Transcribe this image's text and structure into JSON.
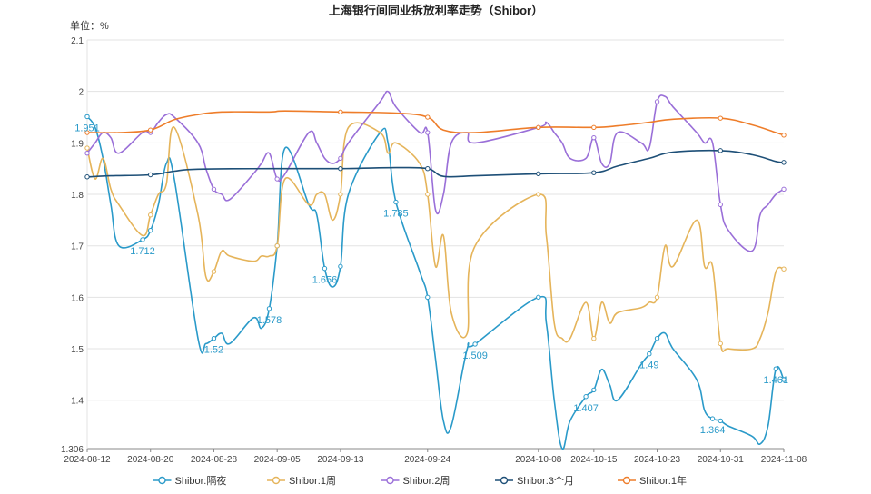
{
  "chart_data": {
    "type": "line",
    "title": "上海银行间同业拆放利率走势（Shibor）",
    "unit_label": "单位：%",
    "ylim": [
      1.306,
      2.1
    ],
    "y_ticks": [
      "1.306",
      "1.4",
      "1.5",
      "1.6",
      "1.7",
      "1.8",
      "1.9",
      "2",
      "2.1"
    ],
    "x_ticks": [
      "2024-08-12",
      "2024-08-20",
      "2024-08-28",
      "2024-09-05",
      "2024-09-13",
      "2024-09-24",
      "2024-10-08",
      "2024-10-15",
      "2024-10-23",
      "2024-10-31",
      "2024-11-08"
    ],
    "grid": true,
    "legend_position": "bottom",
    "series": [
      {
        "name": "Shibor:隔夜",
        "color": "#2a9ac9",
        "values": [
          [
            "2024-08-12",
            1.951
          ],
          [
            "2024-08-13",
            1.93
          ],
          [
            "2024-08-14",
            1.87
          ],
          [
            "2024-08-15",
            1.78
          ],
          [
            "2024-08-16",
            1.7
          ],
          [
            "2024-08-19",
            1.712
          ],
          [
            "2024-08-20",
            1.73
          ],
          [
            "2024-08-21",
            1.78
          ],
          [
            "2024-08-22",
            1.86
          ],
          [
            "2024-08-23",
            1.83
          ],
          [
            "2024-08-26",
            1.52
          ],
          [
            "2024-08-27",
            1.51
          ],
          [
            "2024-08-28",
            1.52
          ],
          [
            "2024-08-29",
            1.53
          ],
          [
            "2024-08-30",
            1.51
          ],
          [
            "2024-09-02",
            1.56
          ],
          [
            "2024-09-03",
            1.54
          ],
          [
            "2024-09-04",
            1.578
          ],
          [
            "2024-09-05",
            1.7
          ],
          [
            "2024-09-06",
            1.89
          ],
          [
            "2024-09-09",
            1.78
          ],
          [
            "2024-09-10",
            1.76
          ],
          [
            "2024-09-11",
            1.656
          ],
          [
            "2024-09-12",
            1.62
          ],
          [
            "2024-09-13",
            1.66
          ],
          [
            "2024-09-14",
            1.8
          ],
          [
            "2024-09-18",
            1.92
          ],
          [
            "2024-09-19",
            1.9
          ],
          [
            "2024-09-20",
            1.785
          ],
          [
            "2024-09-23",
            1.65
          ],
          [
            "2024-09-24",
            1.6
          ],
          [
            "2024-09-25",
            1.48
          ],
          [
            "2024-09-26",
            1.36
          ],
          [
            "2024-09-27",
            1.35
          ],
          [
            "2024-09-29",
            1.5
          ],
          [
            "2024-09-30",
            1.509
          ],
          [
            "2024-10-08",
            1.6
          ],
          [
            "2024-10-09",
            1.55
          ],
          [
            "2024-10-10",
            1.4
          ],
          [
            "2024-10-11",
            1.306
          ],
          [
            "2024-10-12",
            1.36
          ],
          [
            "2024-10-14",
            1.407
          ],
          [
            "2024-10-15",
            1.42
          ],
          [
            "2024-10-16",
            1.46
          ],
          [
            "2024-10-17",
            1.43
          ],
          [
            "2024-10-18",
            1.4
          ],
          [
            "2024-10-21",
            1.47
          ],
          [
            "2024-10-22",
            1.49
          ],
          [
            "2024-10-23",
            1.52
          ],
          [
            "2024-10-24",
            1.53
          ],
          [
            "2024-10-25",
            1.5
          ],
          [
            "2024-10-28",
            1.44
          ],
          [
            "2024-10-29",
            1.38
          ],
          [
            "2024-10-30",
            1.364
          ],
          [
            "2024-10-31",
            1.36
          ],
          [
            "2024-11-01",
            1.35
          ],
          [
            "2024-11-04",
            1.33
          ],
          [
            "2024-11-05",
            1.315
          ],
          [
            "2024-11-06",
            1.35
          ],
          [
            "2024-11-07",
            1.461
          ],
          [
            "2024-11-08",
            1.44
          ]
        ],
        "value_labels": [
          [
            "2024-08-12",
            "1.951"
          ],
          [
            "2024-08-19",
            "1.712"
          ],
          [
            "2024-08-28",
            "1.52"
          ],
          [
            "2024-09-04",
            "1.578"
          ],
          [
            "2024-09-11",
            "1.656"
          ],
          [
            "2024-09-20",
            "1.785"
          ],
          [
            "2024-09-30",
            "1.509"
          ],
          [
            "2024-10-14",
            "1.407"
          ],
          [
            "2024-10-22",
            "1.49"
          ],
          [
            "2024-10-30",
            "1.364"
          ],
          [
            "2024-11-07",
            "1.461"
          ]
        ]
      },
      {
        "name": "Shibor:1周",
        "color": "#e5b45a",
        "values": [
          [
            "2024-08-12",
            1.89
          ],
          [
            "2024-08-13",
            1.83
          ],
          [
            "2024-08-14",
            1.87
          ],
          [
            "2024-08-15",
            1.81
          ],
          [
            "2024-08-16",
            1.78
          ],
          [
            "2024-08-19",
            1.72
          ],
          [
            "2024-08-20",
            1.76
          ],
          [
            "2024-08-21",
            1.8
          ],
          [
            "2024-08-22",
            1.82
          ],
          [
            "2024-08-23",
            1.93
          ],
          [
            "2024-08-26",
            1.76
          ],
          [
            "2024-08-27",
            1.64
          ],
          [
            "2024-08-28",
            1.65
          ],
          [
            "2024-08-29",
            1.69
          ],
          [
            "2024-08-30",
            1.68
          ],
          [
            "2024-09-02",
            1.67
          ],
          [
            "2024-09-03",
            1.68
          ],
          [
            "2024-09-04",
            1.68
          ],
          [
            "2024-09-05",
            1.7
          ],
          [
            "2024-09-06",
            1.83
          ],
          [
            "2024-09-09",
            1.78
          ],
          [
            "2024-09-10",
            1.8
          ],
          [
            "2024-09-11",
            1.8
          ],
          [
            "2024-09-12",
            1.75
          ],
          [
            "2024-09-13",
            1.8
          ],
          [
            "2024-09-14",
            1.93
          ],
          [
            "2024-09-18",
            1.92
          ],
          [
            "2024-09-19",
            1.88
          ],
          [
            "2024-09-20",
            1.9
          ],
          [
            "2024-09-23",
            1.86
          ],
          [
            "2024-09-24",
            1.8
          ],
          [
            "2024-09-25",
            1.66
          ],
          [
            "2024-09-26",
            1.72
          ],
          [
            "2024-09-27",
            1.57
          ],
          [
            "2024-09-29",
            1.53
          ],
          [
            "2024-09-30",
            1.7
          ],
          [
            "2024-10-08",
            1.8
          ],
          [
            "2024-10-09",
            1.72
          ],
          [
            "2024-10-10",
            1.55
          ],
          [
            "2024-10-11",
            1.52
          ],
          [
            "2024-10-12",
            1.52
          ],
          [
            "2024-10-14",
            1.59
          ],
          [
            "2024-10-15",
            1.52
          ],
          [
            "2024-10-16",
            1.59
          ],
          [
            "2024-10-17",
            1.55
          ],
          [
            "2024-10-18",
            1.57
          ],
          [
            "2024-10-21",
            1.58
          ],
          [
            "2024-10-22",
            1.59
          ],
          [
            "2024-10-23",
            1.6
          ],
          [
            "2024-10-24",
            1.7
          ],
          [
            "2024-10-25",
            1.66
          ],
          [
            "2024-10-28",
            1.75
          ],
          [
            "2024-10-29",
            1.66
          ],
          [
            "2024-10-30",
            1.66
          ],
          [
            "2024-10-31",
            1.51
          ],
          [
            "2024-11-01",
            1.5
          ],
          [
            "2024-11-04",
            1.5
          ],
          [
            "2024-11-05",
            1.52
          ],
          [
            "2024-11-06",
            1.57
          ],
          [
            "2024-11-07",
            1.65
          ],
          [
            "2024-11-08",
            1.655
          ]
        ]
      },
      {
        "name": "Shibor:2周",
        "color": "#9a6fd8",
        "values": [
          [
            "2024-08-12",
            1.88
          ],
          [
            "2024-08-13",
            1.9
          ],
          [
            "2024-08-14",
            1.92
          ],
          [
            "2024-08-15",
            1.91
          ],
          [
            "2024-08-16",
            1.88
          ],
          [
            "2024-08-19",
            1.92
          ],
          [
            "2024-08-20",
            1.92
          ],
          [
            "2024-08-21",
            1.94
          ],
          [
            "2024-08-22",
            1.955
          ],
          [
            "2024-08-23",
            1.95
          ],
          [
            "2024-08-26",
            1.9
          ],
          [
            "2024-08-27",
            1.85
          ],
          [
            "2024-08-28",
            1.81
          ],
          [
            "2024-08-29",
            1.8
          ],
          [
            "2024-08-30",
            1.79
          ],
          [
            "2024-09-02",
            1.84
          ],
          [
            "2024-09-03",
            1.86
          ],
          [
            "2024-09-04",
            1.88
          ],
          [
            "2024-09-05",
            1.83
          ],
          [
            "2024-09-06",
            1.84
          ],
          [
            "2024-09-09",
            1.92
          ],
          [
            "2024-09-10",
            1.9
          ],
          [
            "2024-09-11",
            1.87
          ],
          [
            "2024-09-12",
            1.86
          ],
          [
            "2024-09-13",
            1.87
          ],
          [
            "2024-09-14",
            1.9
          ],
          [
            "2024-09-18",
            1.98
          ],
          [
            "2024-09-19",
            2.0
          ],
          [
            "2024-09-20",
            1.97
          ],
          [
            "2024-09-23",
            1.92
          ],
          [
            "2024-09-24",
            1.92
          ],
          [
            "2024-09-25",
            1.77
          ],
          [
            "2024-09-26",
            1.8
          ],
          [
            "2024-09-27",
            1.9
          ],
          [
            "2024-09-29",
            1.92
          ],
          [
            "2024-09-30",
            1.9
          ],
          [
            "2024-10-08",
            1.93
          ],
          [
            "2024-10-09",
            1.94
          ],
          [
            "2024-10-10",
            1.92
          ],
          [
            "2024-10-11",
            1.9
          ],
          [
            "2024-10-12",
            1.87
          ],
          [
            "2024-10-14",
            1.87
          ],
          [
            "2024-10-15",
            1.91
          ],
          [
            "2024-10-16",
            1.86
          ],
          [
            "2024-10-17",
            1.86
          ],
          [
            "2024-10-18",
            1.92
          ],
          [
            "2024-10-21",
            1.9
          ],
          [
            "2024-10-22",
            1.89
          ],
          [
            "2024-10-23",
            1.98
          ],
          [
            "2024-10-24",
            1.99
          ],
          [
            "2024-10-25",
            1.97
          ],
          [
            "2024-10-28",
            1.92
          ],
          [
            "2024-10-29",
            1.9
          ],
          [
            "2024-10-30",
            1.9
          ],
          [
            "2024-10-31",
            1.78
          ],
          [
            "2024-11-01",
            1.73
          ],
          [
            "2024-11-04",
            1.69
          ],
          [
            "2024-11-05",
            1.76
          ],
          [
            "2024-11-06",
            1.78
          ],
          [
            "2024-11-07",
            1.8
          ],
          [
            "2024-11-08",
            1.81
          ]
        ]
      },
      {
        "name": "Shibor:3个月",
        "color": "#1d4f77",
        "values": [
          [
            "2024-08-12",
            1.834
          ],
          [
            "2024-08-15",
            1.836
          ],
          [
            "2024-08-20",
            1.838
          ],
          [
            "2024-08-23",
            1.845
          ],
          [
            "2024-08-26",
            1.849
          ],
          [
            "2024-09-04",
            1.85
          ],
          [
            "2024-09-13",
            1.85
          ],
          [
            "2024-09-20",
            1.852
          ],
          [
            "2024-09-24",
            1.85
          ],
          [
            "2024-09-26",
            1.835
          ],
          [
            "2024-09-30",
            1.836
          ],
          [
            "2024-10-08",
            1.84
          ],
          [
            "2024-10-15",
            1.842
          ],
          [
            "2024-10-18",
            1.855
          ],
          [
            "2024-10-22",
            1.87
          ],
          [
            "2024-10-25",
            1.882
          ],
          [
            "2024-10-31",
            1.885
          ],
          [
            "2024-11-04",
            1.877
          ],
          [
            "2024-11-07",
            1.864
          ],
          [
            "2024-11-08",
            1.862
          ]
        ]
      },
      {
        "name": "Shibor:1年",
        "color": "#ee7d2a",
        "values": [
          [
            "2024-08-12",
            1.92
          ],
          [
            "2024-08-16",
            1.92
          ],
          [
            "2024-08-20",
            1.925
          ],
          [
            "2024-08-23",
            1.945
          ],
          [
            "2024-08-26",
            1.955
          ],
          [
            "2024-08-29",
            1.96
          ],
          [
            "2024-09-04",
            1.96
          ],
          [
            "2024-09-06",
            1.962
          ],
          [
            "2024-09-13",
            1.96
          ],
          [
            "2024-09-20",
            1.958
          ],
          [
            "2024-09-24",
            1.95
          ],
          [
            "2024-09-26",
            1.925
          ],
          [
            "2024-09-30",
            1.92
          ],
          [
            "2024-10-08",
            1.93
          ],
          [
            "2024-10-15",
            1.93
          ],
          [
            "2024-10-18",
            1.933
          ],
          [
            "2024-10-22",
            1.94
          ],
          [
            "2024-10-25",
            1.946
          ],
          [
            "2024-10-31",
            1.948
          ],
          [
            "2024-11-04",
            1.935
          ],
          [
            "2024-11-07",
            1.92
          ],
          [
            "2024-11-08",
            1.915
          ]
        ]
      }
    ]
  }
}
